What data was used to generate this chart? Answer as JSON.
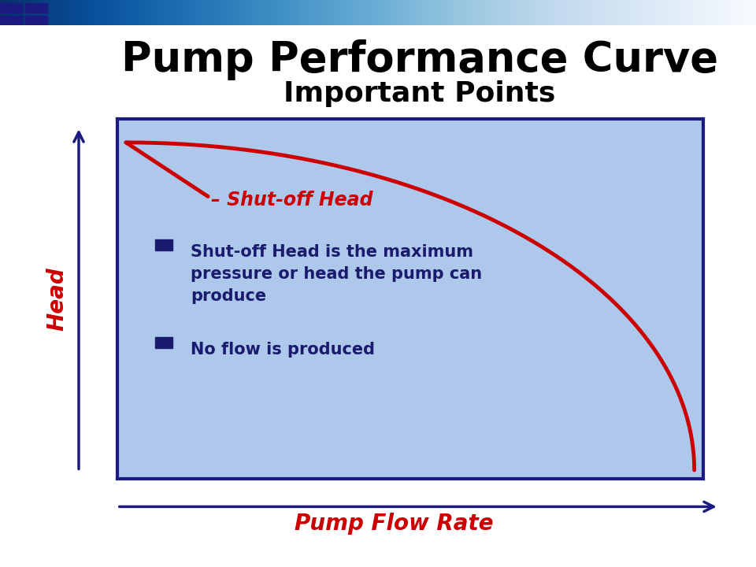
{
  "title_line1": "Pump Performance Curve",
  "title_line2": "Important Points",
  "title_fontsize": 38,
  "subtitle_fontsize": 26,
  "xlabel": "Pump Flow Rate",
  "ylabel": "Head",
  "axis_label_color": "#cc0000",
  "axis_label_fontsize": 20,
  "bg_color": "#adc8eb",
  "plot_border_color": "#1a1a80",
  "curve_color": "#cc0000",
  "curve_linewidth": 3.5,
  "shutoff_label": "– Shut-off Head",
  "shutoff_color": "#cc0000",
  "shutoff_fontsize": 17,
  "bullet_color": "#1a1a6e",
  "bullet1": "Shut-off Head is the maximum\npressure or head the pump can\nproduce",
  "bullet2": "No flow is produced",
  "bullet_fontsize": 15,
  "arrow_color": "#1a1a80",
  "background_color": "#ffffff"
}
